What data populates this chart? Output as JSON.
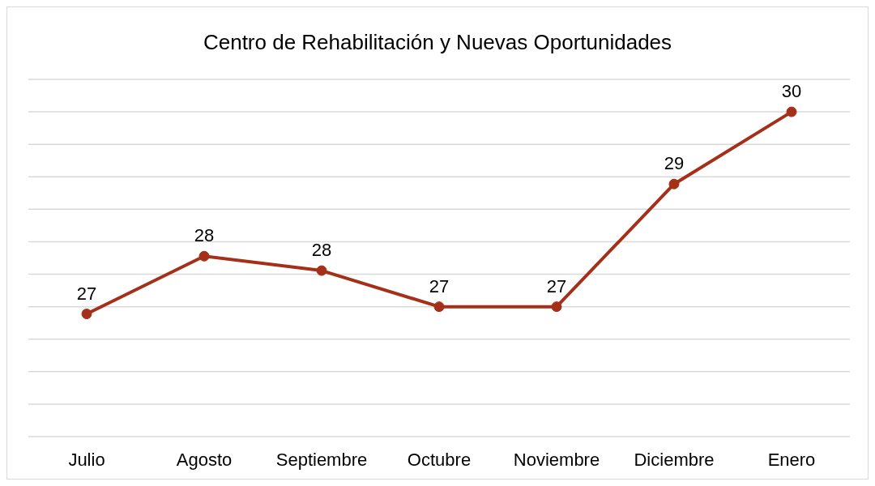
{
  "chart_data": {
    "type": "line",
    "title": "Centro de Rehabilitación y Nuevas Oportunidades",
    "categories": [
      "Julio",
      "Agosto",
      "Septiembre",
      "Octubre",
      "Noviembre",
      "Diciembre",
      "Enero"
    ],
    "series": [
      {
        "color": "#a5301a",
        "values": [
          27.2,
          28.0,
          27.8,
          27.3,
          27.3,
          29.0,
          30.0
        ],
        "value_labels": [
          "27",
          "28",
          "28",
          "27",
          "27",
          "29",
          "30"
        ]
      }
    ],
    "tick_labels": "x",
    "grid": "y",
    "marker": "circle",
    "line_style": "solid",
    "legend": false
  }
}
